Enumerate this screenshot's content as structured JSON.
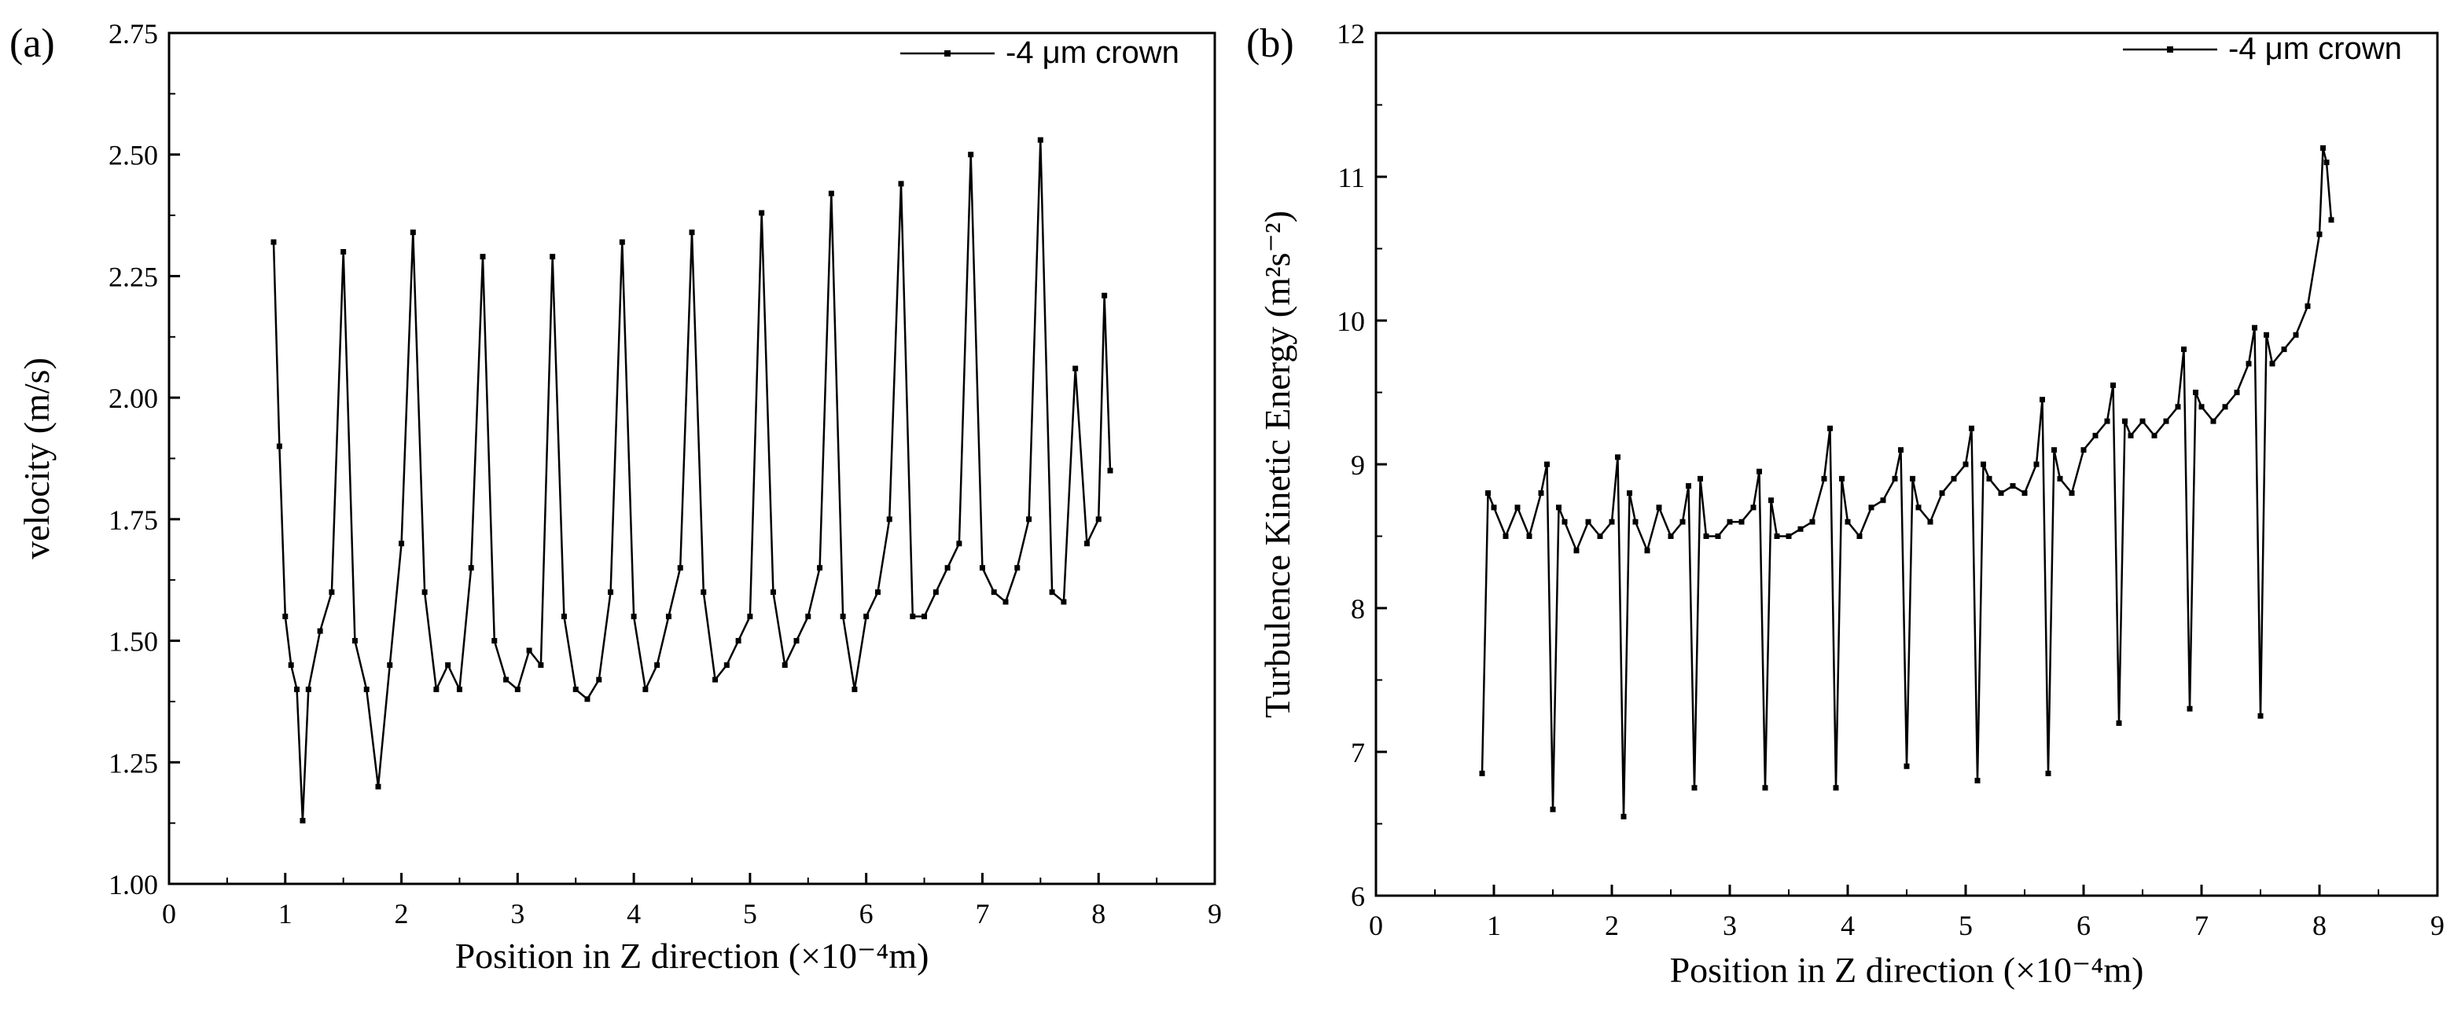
{
  "chart_data": [
    {
      "type": "line",
      "panel_label": "(a)",
      "xlabel": "Position in Z direction (×10⁻⁴m)",
      "ylabel": "velocity (m/s)",
      "xlim": [
        0,
        9
      ],
      "ylim": [
        1.0,
        2.75
      ],
      "x_ticks": [
        "0",
        "1",
        "2",
        "3",
        "4",
        "5",
        "6",
        "7",
        "8",
        "9"
      ],
      "y_ticks": [
        "1.00",
        "1.25",
        "1.50",
        "1.75",
        "2.00",
        "2.25",
        "2.50",
        "2.75"
      ],
      "legend": "-4 μm crown",
      "series": [
        {
          "name": "-4 μm crown",
          "x": [
            0.9,
            0.95,
            1.0,
            1.05,
            1.1,
            1.15,
            1.2,
            1.3,
            1.4,
            1.5,
            1.6,
            1.7,
            1.8,
            1.9,
            2.0,
            2.1,
            2.2,
            2.3,
            2.4,
            2.5,
            2.6,
            2.7,
            2.8,
            2.9,
            3.0,
            3.1,
            3.2,
            3.3,
            3.4,
            3.5,
            3.6,
            3.7,
            3.8,
            3.9,
            4.0,
            4.1,
            4.2,
            4.3,
            4.4,
            4.5,
            4.6,
            4.7,
            4.8,
            4.9,
            5.0,
            5.1,
            5.2,
            5.3,
            5.4,
            5.5,
            5.6,
            5.7,
            5.8,
            5.9,
            6.0,
            6.1,
            6.2,
            6.3,
            6.4,
            6.5,
            6.6,
            6.7,
            6.8,
            6.9,
            7.0,
            7.1,
            7.2,
            7.3,
            7.4,
            7.5,
            7.6,
            7.7,
            7.8,
            7.9,
            8.0,
            8.05,
            8.1
          ],
          "y": [
            2.32,
            1.9,
            1.55,
            1.45,
            1.4,
            1.13,
            1.4,
            1.52,
            1.6,
            2.3,
            1.5,
            1.4,
            1.2,
            1.45,
            1.7,
            2.34,
            1.6,
            1.4,
            1.45,
            1.4,
            1.65,
            2.29,
            1.5,
            1.42,
            1.4,
            1.48,
            1.45,
            2.29,
            1.55,
            1.4,
            1.38,
            1.42,
            1.6,
            2.32,
            1.55,
            1.4,
            1.45,
            1.55,
            1.65,
            2.34,
            1.6,
            1.42,
            1.45,
            1.5,
            1.55,
            2.38,
            1.6,
            1.45,
            1.5,
            1.55,
            1.65,
            2.42,
            1.55,
            1.4,
            1.55,
            1.6,
            1.75,
            2.44,
            1.55,
            1.55,
            1.6,
            1.65,
            1.7,
            2.5,
            1.65,
            1.6,
            1.58,
            1.65,
            1.75,
            2.53,
            1.6,
            1.58,
            2.06,
            1.7,
            1.75,
            2.21,
            1.85
          ]
        }
      ]
    },
    {
      "type": "line",
      "panel_label": "(b)",
      "xlabel": "Position in Z direction (×10⁻⁴m)",
      "ylabel": "Turbulence Kinetic Energy (m²s⁻²)",
      "xlim": [
        0,
        9
      ],
      "ylim": [
        6,
        12
      ],
      "x_ticks": [
        "0",
        "1",
        "2",
        "3",
        "4",
        "5",
        "6",
        "7",
        "8",
        "9"
      ],
      "y_ticks": [
        "6",
        "7",
        "8",
        "9",
        "10",
        "11",
        "12"
      ],
      "legend": "-4 μm crown",
      "series": [
        {
          "name": "-4 μm crown",
          "x": [
            0.9,
            0.95,
            1.0,
            1.1,
            1.2,
            1.3,
            1.4,
            1.45,
            1.5,
            1.55,
            1.6,
            1.7,
            1.8,
            1.9,
            2.0,
            2.05,
            2.1,
            2.15,
            2.2,
            2.3,
            2.4,
            2.5,
            2.6,
            2.65,
            2.7,
            2.75,
            2.8,
            2.9,
            3.0,
            3.1,
            3.2,
            3.25,
            3.3,
            3.35,
            3.4,
            3.5,
            3.6,
            3.7,
            3.8,
            3.85,
            3.9,
            3.95,
            4.0,
            4.1,
            4.2,
            4.3,
            4.4,
            4.45,
            4.5,
            4.55,
            4.6,
            4.7,
            4.8,
            4.9,
            5.0,
            5.05,
            5.1,
            5.15,
            5.2,
            5.3,
            5.4,
            5.5,
            5.6,
            5.65,
            5.7,
            5.75,
            5.8,
            5.9,
            6.0,
            6.1,
            6.2,
            6.25,
            6.3,
            6.35,
            6.4,
            6.5,
            6.6,
            6.7,
            6.8,
            6.85,
            6.9,
            6.95,
            7.0,
            7.1,
            7.2,
            7.3,
            7.4,
            7.45,
            7.5,
            7.55,
            7.6,
            7.7,
            7.8,
            7.9,
            8.0,
            8.03,
            8.06,
            8.1
          ],
          "y": [
            6.85,
            8.8,
            8.7,
            8.5,
            8.7,
            8.5,
            8.8,
            9.0,
            6.6,
            8.7,
            8.6,
            8.4,
            8.6,
            8.5,
            8.6,
            9.05,
            6.55,
            8.8,
            8.6,
            8.4,
            8.7,
            8.5,
            8.6,
            8.85,
            6.75,
            8.9,
            8.5,
            8.5,
            8.6,
            8.6,
            8.7,
            8.95,
            6.75,
            8.75,
            8.5,
            8.5,
            8.55,
            8.6,
            8.9,
            9.25,
            6.75,
            8.9,
            8.6,
            8.5,
            8.7,
            8.75,
            8.9,
            9.1,
            6.9,
            8.9,
            8.7,
            8.6,
            8.8,
            8.9,
            9.0,
            9.25,
            6.8,
            9.0,
            8.9,
            8.8,
            8.85,
            8.8,
            9.0,
            9.45,
            6.85,
            9.1,
            8.9,
            8.8,
            9.1,
            9.2,
            9.3,
            9.55,
            7.2,
            9.3,
            9.2,
            9.3,
            9.2,
            9.3,
            9.4,
            9.8,
            7.3,
            9.5,
            9.4,
            9.3,
            9.4,
            9.5,
            9.7,
            9.95,
            7.25,
            9.9,
            9.7,
            9.8,
            9.9,
            10.1,
            10.6,
            11.2,
            11.1,
            10.7
          ]
        }
      ]
    }
  ]
}
